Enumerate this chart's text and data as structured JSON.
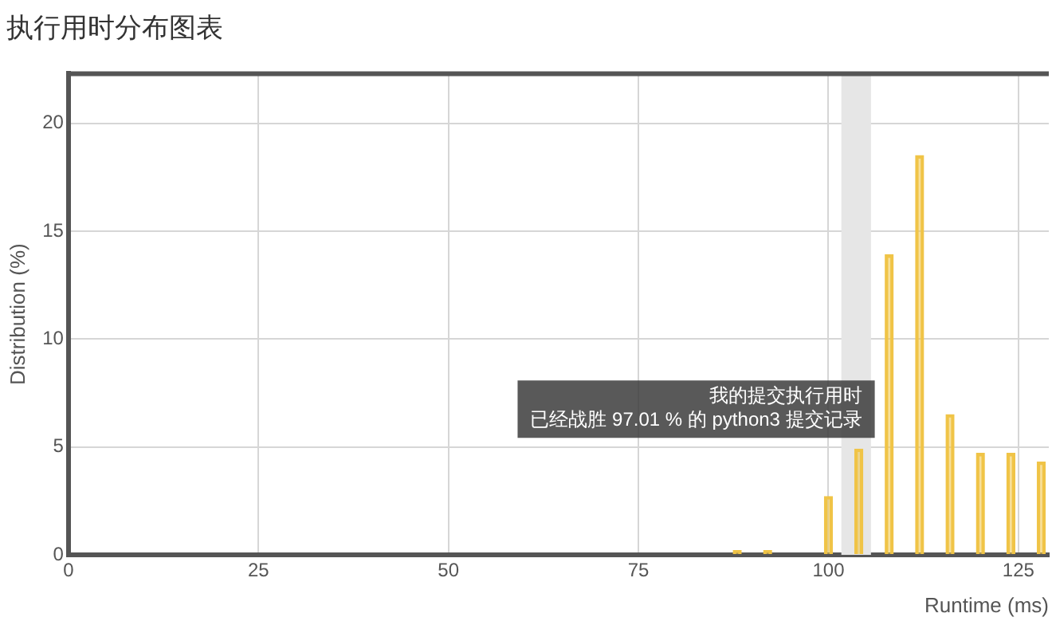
{
  "chart_data": {
    "type": "bar",
    "title": "执行用时分布图表",
    "xlabel": "Runtime (ms)",
    "ylabel": "Distribution (%)",
    "x": [
      88,
      92,
      100,
      104,
      108,
      112,
      116,
      120,
      124,
      128
    ],
    "series": [
      {
        "color": "#f0c447",
        "values": [
          0.2,
          0.2,
          2.7,
          4.9,
          13.9,
          18.5,
          6.5,
          4.7,
          4.7,
          4.3
        ]
      }
    ],
    "xlim": [
      0,
      129
    ],
    "xticks": [
      0,
      25,
      50,
      75,
      100,
      125
    ],
    "ylim": [
      0,
      22.3
    ],
    "yticks": [
      0,
      5,
      10,
      15,
      20
    ],
    "bands": [
      {
        "axis": "x",
        "from": 101.7,
        "to": 105.6,
        "color": "#e6e6e6"
      }
    ],
    "annotations": [
      {
        "text": "我的提交执行用时",
        "x": 104,
        "y": 4.9
      },
      {
        "text": "已经战胜 97.01 % 的 python3 提交记录",
        "x": 104,
        "y": 4.9
      }
    ],
    "grid": true,
    "legend": false
  }
}
